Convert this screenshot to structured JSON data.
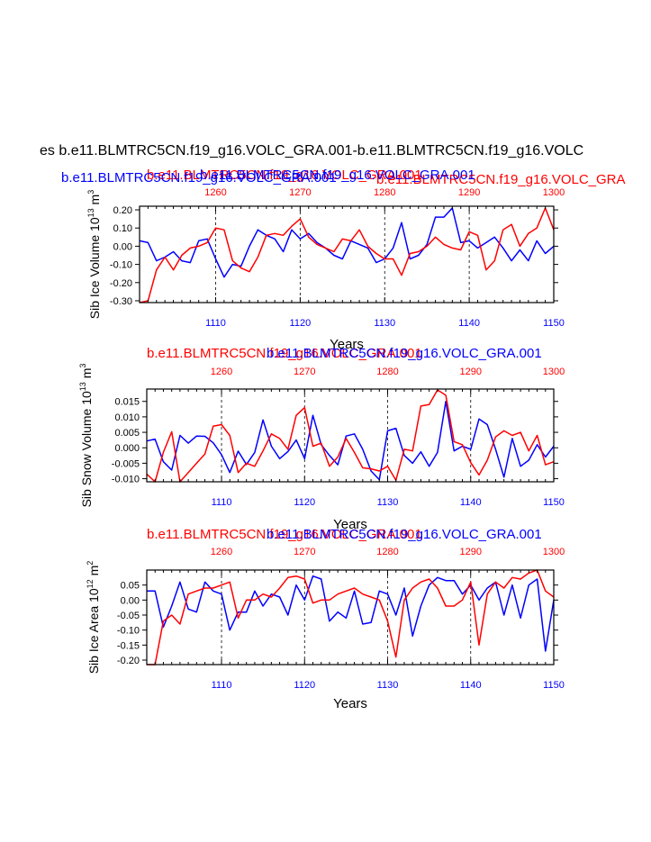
{
  "figure_title": "es b.e11.BLMTRC5CN.f19_g16.VOLC_GRA.001-b.e11.BLMTRC5CN.f19_g16.VOLC",
  "colors": {
    "series_a": "#ff0000",
    "series_b": "#0000ff",
    "axis": "#000000",
    "grid": "#000000"
  },
  "chart_data": [
    {
      "type": "line",
      "title_red": "b.e11.BLMTRC5CN.f19_g16.VOLC_GRA.001",
      "title_blue": "b.e11.BLMTRC5CN.f19_g16.VOLC_GRA.001",
      "title_red_overlap": "b.e11.BLMTRC5CN.f19_g16.VOLC_GRA",
      "title_blue_overlap": "b.e11.BLMTRC5CN.f19_g16.VOLC_GRA.001",
      "ylabel_main": "Sib Ice Volume 10",
      "ylabel_exp": "13",
      "ylabel_unit": " m",
      "ylabel_unit_exp": "3",
      "xlabel": "Years",
      "ylim": [
        -0.31,
        0.22
      ],
      "yticks": [
        -0.3,
        -0.2,
        -0.1,
        0.0,
        0.1,
        0.2
      ],
      "ytick_labels": [
        "-0.30",
        "-0.20",
        "-0.10",
        "0.00",
        "0.10",
        "0.20"
      ],
      "x_bottom": {
        "range": [
          1101,
          1150
        ],
        "ticks": [
          1110,
          1120,
          1130,
          1140,
          1150
        ],
        "labels": [
          "1110",
          "1120",
          "1130",
          "1140",
          "1150"
        ]
      },
      "x_top": {
        "range": [
          1251,
          1300
        ],
        "ticks": [
          1260,
          1270,
          1280,
          1290,
          1300
        ],
        "labels": [
          "1260",
          "1270",
          "1280",
          "1290",
          "1300"
        ]
      },
      "series": [
        {
          "name": "blue",
          "color": "#0000ff",
          "x": [
            1101,
            1102,
            1103,
            1104,
            1105,
            1106,
            1107,
            1108,
            1109,
            1110,
            1111,
            1112,
            1113,
            1114,
            1115,
            1116,
            1117,
            1118,
            1119,
            1120,
            1121,
            1122,
            1123,
            1124,
            1125,
            1126,
            1127,
            1128,
            1129,
            1130,
            1131,
            1132,
            1133,
            1134,
            1135,
            1136,
            1137,
            1138,
            1139,
            1140,
            1141,
            1142,
            1143,
            1144,
            1145,
            1146,
            1147,
            1148,
            1149,
            1150
          ],
          "values": [
            0.03,
            0.02,
            -0.08,
            -0.06,
            -0.03,
            -0.08,
            -0.09,
            0.03,
            0.04,
            -0.07,
            -0.17,
            -0.1,
            -0.11,
            0.0,
            0.09,
            0.06,
            0.04,
            -0.03,
            0.09,
            0.04,
            0.07,
            0.02,
            -0.01,
            -0.05,
            -0.07,
            0.03,
            0.01,
            -0.01,
            -0.09,
            -0.07,
            -0.01,
            0.13,
            -0.07,
            -0.05,
            0.01,
            0.16,
            0.16,
            0.21,
            0.02,
            0.03,
            -0.01,
            0.02,
            0.05,
            -0.01,
            -0.08,
            -0.02,
            -0.08,
            0.03,
            -0.04,
            0.0
          ]
        },
        {
          "name": "red",
          "color": "#ff0000",
          "x": [
            1101,
            1102,
            1103,
            1104,
            1105,
            1106,
            1107,
            1108,
            1109,
            1110,
            1111,
            1112,
            1113,
            1114,
            1115,
            1116,
            1117,
            1118,
            1119,
            1120,
            1121,
            1122,
            1123,
            1124,
            1125,
            1126,
            1127,
            1128,
            1129,
            1130,
            1131,
            1132,
            1133,
            1134,
            1135,
            1136,
            1137,
            1138,
            1139,
            1140,
            1141,
            1142,
            1143,
            1144,
            1145,
            1146,
            1147,
            1148,
            1149,
            1150
          ],
          "values": [
            -0.31,
            -0.3,
            -0.13,
            -0.06,
            -0.13,
            -0.05,
            -0.01,
            0.0,
            0.02,
            0.1,
            0.09,
            -0.08,
            -0.12,
            -0.14,
            -0.06,
            0.06,
            0.07,
            0.06,
            0.11,
            0.15,
            0.05,
            0.01,
            -0.01,
            -0.03,
            0.04,
            0.03,
            0.09,
            0.0,
            -0.04,
            -0.07,
            -0.07,
            -0.16,
            -0.04,
            -0.03,
            0.0,
            0.05,
            0.01,
            -0.01,
            -0.02,
            0.08,
            0.06,
            -0.13,
            -0.08,
            0.09,
            0.12,
            0.0,
            0.07,
            0.1,
            0.21,
            0.09
          ]
        }
      ]
    },
    {
      "type": "line",
      "title_red": "b.e11.BLMTRC5CN.f19_g16.VOLC_GRA.001",
      "title_blue": "b.e11.BLMTRC5CN.f19_g16.VOLC_GRA.001",
      "ylabel_main": "Sib Snow Volume 10",
      "ylabel_exp": "13",
      "ylabel_unit": " m",
      "ylabel_unit_exp": "3",
      "xlabel": "Years",
      "ylim": [
        -0.011,
        0.019
      ],
      "yticks": [
        -0.01,
        -0.005,
        0.0,
        0.005,
        0.01,
        0.015
      ],
      "ytick_labels": [
        "-0.010",
        "-0.005",
        "0.000",
        "0.005",
        "0.010",
        "0.015"
      ],
      "x_bottom": {
        "range": [
          1101,
          1150
        ],
        "ticks": [
          1110,
          1120,
          1130,
          1140,
          1150
        ],
        "labels": [
          "1110",
          "1120",
          "1130",
          "1140",
          "1150"
        ]
      },
      "x_top": {
        "range": [
          1251,
          1300
        ],
        "ticks": [
          1260,
          1270,
          1280,
          1290,
          1300
        ],
        "labels": [
          "1260",
          "1270",
          "1280",
          "1290",
          "1300"
        ]
      },
      "series": [
        {
          "name": "blue",
          "color": "#0000ff",
          "x": [
            1101,
            1102,
            1103,
            1104,
            1105,
            1106,
            1107,
            1108,
            1109,
            1110,
            1111,
            1112,
            1113,
            1114,
            1115,
            1116,
            1117,
            1118,
            1119,
            1120,
            1121,
            1122,
            1123,
            1124,
            1125,
            1126,
            1127,
            1128,
            1129,
            1130,
            1131,
            1132,
            1133,
            1134,
            1135,
            1136,
            1137,
            1138,
            1139,
            1140,
            1141,
            1142,
            1143,
            1144,
            1145,
            1146,
            1147,
            1148,
            1149,
            1150
          ],
          "values": [
            0.0022,
            0.0028,
            -0.0045,
            -0.0072,
            0.004,
            0.0015,
            0.0038,
            0.0037,
            0.0016,
            -0.0022,
            -0.008,
            -0.0011,
            -0.0054,
            -0.0015,
            0.009,
            0.0005,
            -0.0035,
            -0.0012,
            0.0025,
            -0.0035,
            0.0105,
            0.001,
            -0.0025,
            -0.0055,
            0.0038,
            0.0045,
            -0.0005,
            -0.0075,
            -0.0103,
            0.0055,
            0.0063,
            -0.0025,
            -0.005,
            -0.0013,
            -0.006,
            -0.0015,
            0.015,
            -0.001,
            0.0005,
            -0.0005,
            0.0093,
            0.0075,
            -0.0005,
            -0.0095,
            0.003,
            -0.006,
            -0.004,
            0.001,
            -0.003,
            0.0005
          ]
        },
        {
          "name": "red",
          "color": "#ff0000",
          "x": [
            1101,
            1102,
            1103,
            1104,
            1105,
            1106,
            1107,
            1108,
            1109,
            1110,
            1111,
            1112,
            1113,
            1114,
            1115,
            1116,
            1117,
            1118,
            1119,
            1120,
            1121,
            1122,
            1123,
            1124,
            1125,
            1126,
            1127,
            1128,
            1129,
            1130,
            1131,
            1132,
            1133,
            1134,
            1135,
            1136,
            1137,
            1138,
            1139,
            1140,
            1141,
            1142,
            1143,
            1144,
            1145,
            1146,
            1147,
            1148,
            1149,
            1150
          ],
          "values": [
            -0.0085,
            -0.011,
            -0.0015,
            0.0052,
            -0.011,
            -0.008,
            -0.005,
            -0.002,
            0.007,
            0.0075,
            0.004,
            -0.008,
            -0.005,
            -0.006,
            -0.001,
            0.0045,
            0.003,
            -0.0005,
            0.0105,
            0.013,
            0.0005,
            0.0015,
            -0.006,
            -0.003,
            0.003,
            -0.0015,
            -0.0065,
            -0.0068,
            -0.0075,
            -0.006,
            -0.0105,
            -0.0005,
            -0.001,
            0.0135,
            0.014,
            0.0187,
            0.017,
            0.002,
            0.001,
            -0.0048,
            -0.0088,
            -0.004,
            0.0035,
            0.0055,
            0.004,
            0.005,
            -0.001,
            0.004,
            -0.0055,
            -0.0045
          ]
        }
      ]
    },
    {
      "type": "line",
      "title_red": "b.e11.BLMTRC5CN.f19_g16.VOLC_GRA.001",
      "title_blue": "b.e11.BLMTRC5CN.f19_g16.VOLC_GRA.001",
      "ylabel_main": "Sib Ice Area 10",
      "ylabel_exp": "12",
      "ylabel_unit": " m",
      "ylabel_unit_exp": "2",
      "xlabel": "Years",
      "ylim": [
        -0.215,
        0.1
      ],
      "yticks": [
        -0.2,
        -0.15,
        -0.1,
        -0.05,
        0.0,
        0.05
      ],
      "ytick_labels": [
        "-0.20",
        "-0.15",
        "-0.10",
        "-0.05",
        "0.00",
        "0.05"
      ],
      "x_bottom": {
        "range": [
          1101,
          1150
        ],
        "ticks": [
          1110,
          1120,
          1130,
          1140,
          1150
        ],
        "labels": [
          "1110",
          "1120",
          "1130",
          "1140",
          "1150"
        ]
      },
      "x_top": {
        "range": [
          1251,
          1300
        ],
        "ticks": [
          1260,
          1270,
          1280,
          1290,
          1300
        ],
        "labels": [
          "1260",
          "1270",
          "1280",
          "1290",
          "1300"
        ]
      },
      "series": [
        {
          "name": "blue",
          "color": "#0000ff",
          "x": [
            1101,
            1102,
            1103,
            1104,
            1105,
            1106,
            1107,
            1108,
            1109,
            1110,
            1111,
            1112,
            1113,
            1114,
            1115,
            1116,
            1117,
            1118,
            1119,
            1120,
            1121,
            1122,
            1123,
            1124,
            1125,
            1126,
            1127,
            1128,
            1129,
            1130,
            1131,
            1132,
            1133,
            1134,
            1135,
            1136,
            1137,
            1138,
            1139,
            1140,
            1141,
            1142,
            1143,
            1144,
            1145,
            1146,
            1147,
            1148,
            1149,
            1150
          ],
          "values": [
            0.03,
            0.03,
            -0.09,
            -0.02,
            0.06,
            -0.03,
            -0.04,
            0.06,
            0.03,
            0.02,
            -0.1,
            -0.04,
            -0.04,
            0.03,
            -0.02,
            0.02,
            0.01,
            -0.05,
            0.05,
            0.0,
            0.08,
            0.07,
            -0.07,
            -0.04,
            -0.06,
            0.03,
            -0.08,
            -0.075,
            0.03,
            0.02,
            -0.05,
            0.04,
            -0.12,
            -0.02,
            0.05,
            0.075,
            0.065,
            0.065,
            0.02,
            0.05,
            0.0,
            0.04,
            0.06,
            -0.05,
            0.05,
            -0.06,
            0.05,
            0.07,
            -0.17,
            0.0
          ]
        },
        {
          "name": "red",
          "color": "#ff0000",
          "x": [
            1101,
            1102,
            1103,
            1104,
            1105,
            1106,
            1107,
            1108,
            1109,
            1110,
            1111,
            1112,
            1113,
            1114,
            1115,
            1116,
            1117,
            1118,
            1119,
            1120,
            1121,
            1122,
            1123,
            1124,
            1125,
            1126,
            1127,
            1128,
            1129,
            1130,
            1131,
            1132,
            1133,
            1134,
            1135,
            1136,
            1137,
            1138,
            1139,
            1140,
            1141,
            1142,
            1143,
            1144,
            1145,
            1146,
            1147,
            1148,
            1149,
            1150
          ],
          "values": [
            -0.215,
            -0.215,
            -0.07,
            -0.05,
            -0.08,
            0.02,
            0.03,
            0.04,
            0.04,
            0.05,
            0.06,
            -0.06,
            0.0,
            0.0,
            0.02,
            0.01,
            0.04,
            0.075,
            0.08,
            0.07,
            -0.01,
            0.0,
            0.0,
            0.02,
            0.03,
            0.04,
            0.02,
            0.01,
            0.0,
            -0.07,
            -0.19,
            0.0,
            0.04,
            0.06,
            0.07,
            0.04,
            -0.02,
            -0.02,
            0.0,
            0.06,
            -0.15,
            0.02,
            0.06,
            0.04,
            0.075,
            0.07,
            0.09,
            0.1,
            0.03,
            0.01
          ]
        }
      ]
    }
  ]
}
